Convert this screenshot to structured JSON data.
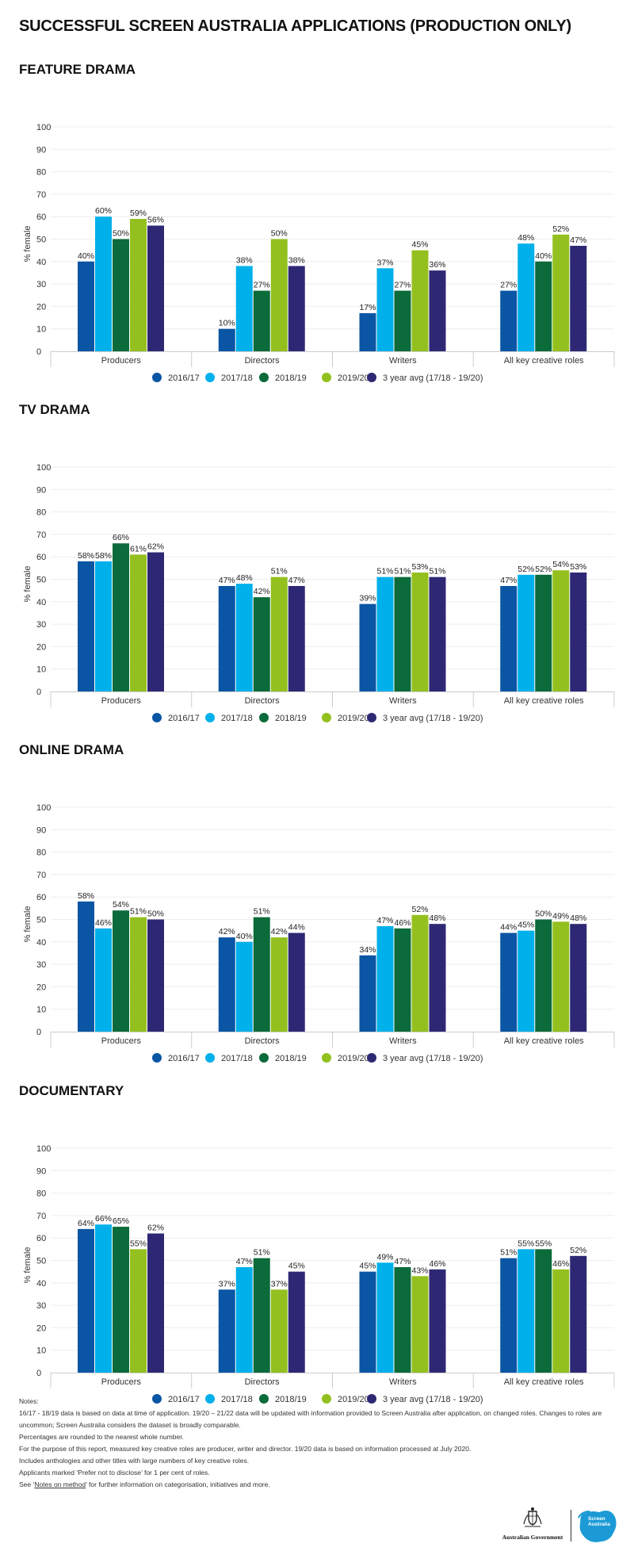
{
  "title": "SUCCESSFUL SCREEN AUSTRALIA APPLICATIONS (PRODUCTION ONLY)",
  "colors": {
    "2016/17": "#0a56a5",
    "2017/18": "#00b0ea",
    "2018/19": "#0b6b3a",
    "2019/20": "#93c01f",
    "3 year avg (17/18 - 19/20)": "#2e2874",
    "axis": "#cccccc",
    "grid": "#eeeeee"
  },
  "chart_data": [
    {
      "type": "bar",
      "title": "FEATURE DRAMA",
      "ylabel": "% female",
      "ylim": [
        0,
        100
      ],
      "yticks": [
        0,
        10,
        20,
        30,
        40,
        50,
        60,
        70,
        80,
        90,
        100
      ],
      "grid": true,
      "legend": "bottom",
      "categories": [
        "Producers",
        "Directors",
        "Writers",
        "All key creative roles"
      ],
      "series": [
        {
          "name": "2016/17",
          "values": [
            40,
            10,
            17,
            27
          ]
        },
        {
          "name": "2017/18",
          "values": [
            60,
            38,
            37,
            48
          ]
        },
        {
          "name": "2018/19",
          "values": [
            50,
            27,
            27,
            40
          ]
        },
        {
          "name": "2019/20",
          "values": [
            59,
            50,
            45,
            52
          ]
        },
        {
          "name": "3 year avg (17/18 - 19/20)",
          "values": [
            56,
            38,
            36,
            47
          ]
        }
      ]
    },
    {
      "type": "bar",
      "title": "TV DRAMA",
      "ylabel": "% female",
      "ylim": [
        0,
        100
      ],
      "yticks": [
        0,
        10,
        20,
        30,
        40,
        50,
        60,
        70,
        80,
        90,
        100
      ],
      "grid": true,
      "legend": "bottom",
      "categories": [
        "Producers",
        "Directors",
        "Writers",
        "All key creative roles"
      ],
      "series": [
        {
          "name": "2016/17",
          "values": [
            58,
            47,
            39,
            47
          ]
        },
        {
          "name": "2017/18",
          "values": [
            58,
            48,
            51,
            52
          ]
        },
        {
          "name": "2018/19",
          "values": [
            66,
            42,
            51,
            52
          ]
        },
        {
          "name": "2019/20",
          "values": [
            61,
            51,
            53,
            54
          ]
        },
        {
          "name": "3 year avg (17/18 - 19/20)",
          "values": [
            62,
            47,
            51,
            53
          ]
        }
      ]
    },
    {
      "type": "bar",
      "title": "ONLINE DRAMA",
      "ylabel": "% female",
      "ylim": [
        0,
        100
      ],
      "yticks": [
        0,
        10,
        20,
        30,
        40,
        50,
        60,
        70,
        80,
        90,
        100
      ],
      "grid": true,
      "legend": "bottom",
      "categories": [
        "Producers",
        "Directors",
        "Writers",
        "All key creative roles"
      ],
      "series": [
        {
          "name": "2016/17",
          "values": [
            58,
            42,
            34,
            44
          ]
        },
        {
          "name": "2017/18",
          "values": [
            46,
            40,
            47,
            45
          ]
        },
        {
          "name": "2018/19",
          "values": [
            54,
            51,
            46,
            50
          ]
        },
        {
          "name": "2019/20",
          "values": [
            51,
            42,
            52,
            49
          ]
        },
        {
          "name": "3 year avg (17/18 - 19/20)",
          "values": [
            50,
            44,
            48,
            48
          ]
        }
      ]
    },
    {
      "type": "bar",
      "title": "DOCUMENTARY",
      "ylabel": "% female",
      "ylim": [
        0,
        100
      ],
      "yticks": [
        0,
        10,
        20,
        30,
        40,
        50,
        60,
        70,
        80,
        90,
        100
      ],
      "grid": true,
      "legend": "bottom",
      "categories": [
        "Producers",
        "Directors",
        "Writers",
        "All key creative roles"
      ],
      "series": [
        {
          "name": "2016/17",
          "values": [
            64,
            37,
            45,
            51
          ]
        },
        {
          "name": "2017/18",
          "values": [
            66,
            47,
            49,
            55
          ]
        },
        {
          "name": "2018/19",
          "values": [
            65,
            51,
            47,
            55
          ]
        },
        {
          "name": "2019/20",
          "values": [
            55,
            37,
            43,
            46
          ]
        },
        {
          "name": "3 year avg (17/18 - 19/20)",
          "values": [
            62,
            45,
            46,
            52
          ]
        }
      ]
    }
  ],
  "notes": {
    "heading": "Notes:",
    "lines": [
      "16/17 - 18/19 data is based on data at time of application. 19/20 – 21/22 data will be updated with information provided to Screen Australia after application, on changed roles. Changes to roles are",
      "uncommon; Screen Australia considers the dataset is broadly comparable.",
      "Percentages are rounded to the nearest whole number.",
      "For the purpose of this report, measured key creative roles are producer, writer and director. 19/20 data is based on information processed at July 2020.",
      "Includes anthologies and other titles with large numbers of key creative roles.",
      "Applicants marked ‘Prefer not to disclose’ for 1 per cent of roles."
    ],
    "link_prefix": "See ‘",
    "link_text": "Notes on method",
    "link_suffix": "’ for further information on categorisation, initiatives and more."
  },
  "footer": {
    "gov_logo_text": "Australian Government",
    "sa_logo_line1": "Screen",
    "sa_logo_line2": "Australia"
  }
}
